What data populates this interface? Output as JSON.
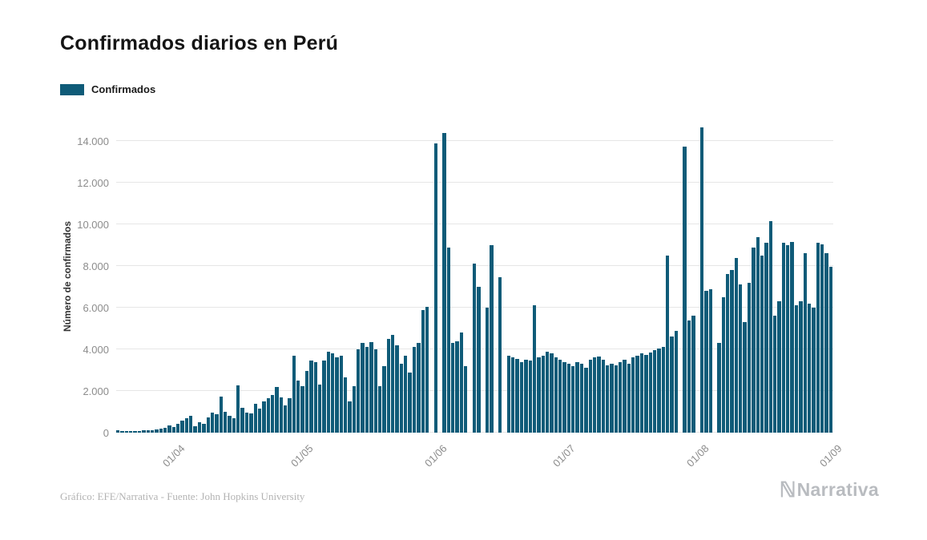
{
  "page": {
    "title": "Confirmados diarios en Perú",
    "credit": "Gráfico: EFE/Narrativa - Fuente: John Hopkins University",
    "brand": "Narrativa",
    "brand_icon": "ℕ"
  },
  "legend": {
    "label": "Confirmados",
    "color": "#0f5b78"
  },
  "chart_data": {
    "type": "bar",
    "title": "Confirmados diarios en Perú",
    "series_name": "Confirmados",
    "xlabel": "",
    "ylabel": "Número de confirmados",
    "ylim": [
      0,
      15000
    ],
    "yticks": [
      0,
      2000,
      4000,
      6000,
      8000,
      10000,
      12000,
      14000
    ],
    "ytick_labels": [
      "0",
      "2.000",
      "4.000",
      "6.000",
      "8.000",
      "10.000",
      "12.000",
      "14.000"
    ],
    "xticks": [
      "01/04",
      "01/05",
      "01/06",
      "01/07",
      "01/08",
      "01/09"
    ],
    "grid": true,
    "legend_position": "top-left",
    "bar_color": "#0f5b78",
    "dates": [
      "18/03",
      "19/03",
      "20/03",
      "21/03",
      "22/03",
      "23/03",
      "24/03",
      "25/03",
      "26/03",
      "27/03",
      "28/03",
      "29/03",
      "30/03",
      "31/03",
      "01/04",
      "02/04",
      "03/04",
      "04/04",
      "05/04",
      "06/04",
      "07/04",
      "08/04",
      "09/04",
      "10/04",
      "11/04",
      "12/04",
      "13/04",
      "14/04",
      "15/04",
      "16/04",
      "17/04",
      "18/04",
      "19/04",
      "20/04",
      "21/04",
      "22/04",
      "23/04",
      "24/04",
      "25/04",
      "26/04",
      "27/04",
      "28/04",
      "29/04",
      "30/04",
      "01/05",
      "02/05",
      "03/05",
      "04/05",
      "05/05",
      "06/05",
      "07/05",
      "08/05",
      "09/05",
      "10/05",
      "11/05",
      "12/05",
      "13/05",
      "14/05",
      "15/05",
      "16/05",
      "17/05",
      "18/05",
      "19/05",
      "20/05",
      "21/05",
      "22/05",
      "23/05",
      "24/05",
      "25/05",
      "26/05",
      "27/05",
      "28/05",
      "29/05",
      "30/05",
      "31/05",
      "01/06",
      "02/06",
      "03/06",
      "04/06",
      "05/06",
      "06/06",
      "07/06",
      "08/06",
      "09/06",
      "10/06",
      "11/06",
      "12/06",
      "13/06",
      "14/06",
      "15/06",
      "16/06",
      "17/06",
      "18/06",
      "19/06",
      "20/06",
      "21/06",
      "22/06",
      "23/06",
      "24/06",
      "25/06",
      "26/06",
      "27/06",
      "28/06",
      "29/06",
      "30/06",
      "01/07",
      "02/07",
      "03/07",
      "04/07",
      "05/07",
      "06/07",
      "07/07",
      "08/07",
      "09/07",
      "10/07",
      "11/07",
      "12/07",
      "13/07",
      "14/07",
      "15/07",
      "16/07",
      "17/07",
      "18/07",
      "19/07",
      "20/07",
      "21/07",
      "22/07",
      "23/07",
      "24/07",
      "25/07",
      "26/07",
      "27/07",
      "28/07",
      "29/07",
      "30/07",
      "31/07",
      "01/08",
      "02/08",
      "03/08",
      "04/08",
      "05/08",
      "06/08",
      "07/08",
      "08/08",
      "09/08",
      "10/08",
      "11/08",
      "12/08",
      "13/08",
      "14/08",
      "15/08",
      "16/08",
      "17/08",
      "18/08",
      "19/08",
      "20/08",
      "21/08",
      "22/08",
      "23/08",
      "24/08",
      "25/08",
      "26/08",
      "27/08",
      "28/08",
      "29/08",
      "30/08",
      "31/08"
    ],
    "values": [
      100,
      60,
      80,
      70,
      90,
      80,
      100,
      110,
      130,
      150,
      180,
      220,
      350,
      260,
      420,
      580,
      700,
      790,
      310,
      500,
      420,
      720,
      980,
      890,
      1750,
      1000,
      820,
      700,
      2270,
      1200,
      980,
      920,
      1400,
      1150,
      1500,
      1650,
      1800,
      2200,
      1700,
      1300,
      1650,
      3680,
      2500,
      2250,
      2950,
      3450,
      3400,
      2300,
      3450,
      3900,
      3800,
      3600,
      3700,
      2650,
      1500,
      2250,
      4000,
      4300,
      4100,
      4350,
      4000,
      2250,
      3200,
      4500,
      4700,
      4200,
      3300,
      3700,
      2900,
      4100,
      4300,
      5900,
      6050,
      0,
      13900,
      0,
      14400,
      8900,
      4300,
      4400,
      4800,
      3200,
      0,
      8100,
      7000,
      0,
      6000,
      9000,
      0,
      7450,
      0,
      3700,
      3600,
      3550,
      3400,
      3500,
      3450,
      6100,
      3600,
      3700,
      3900,
      3800,
      3600,
      3500,
      3400,
      3300,
      3200,
      3400,
      3300,
      3100,
      3500,
      3600,
      3650,
      3500,
      3250,
      3300,
      3250,
      3400,
      3500,
      3300,
      3600,
      3700,
      3800,
      3750,
      3850,
      3950,
      4050,
      4100,
      8500,
      4600,
      4900,
      0,
      13750,
      5400,
      5600,
      0,
      14650,
      6800,
      6900,
      0,
      4300,
      6500,
      7600,
      7800,
      8400,
      7100,
      5300,
      7200,
      8900,
      9400,
      8500,
      9100,
      10150,
      5600,
      6300,
      9100,
      9000,
      9150,
      6100,
      6300,
      8600,
      6200,
      6000,
      9100,
      9050,
      8600,
      7950
    ]
  }
}
